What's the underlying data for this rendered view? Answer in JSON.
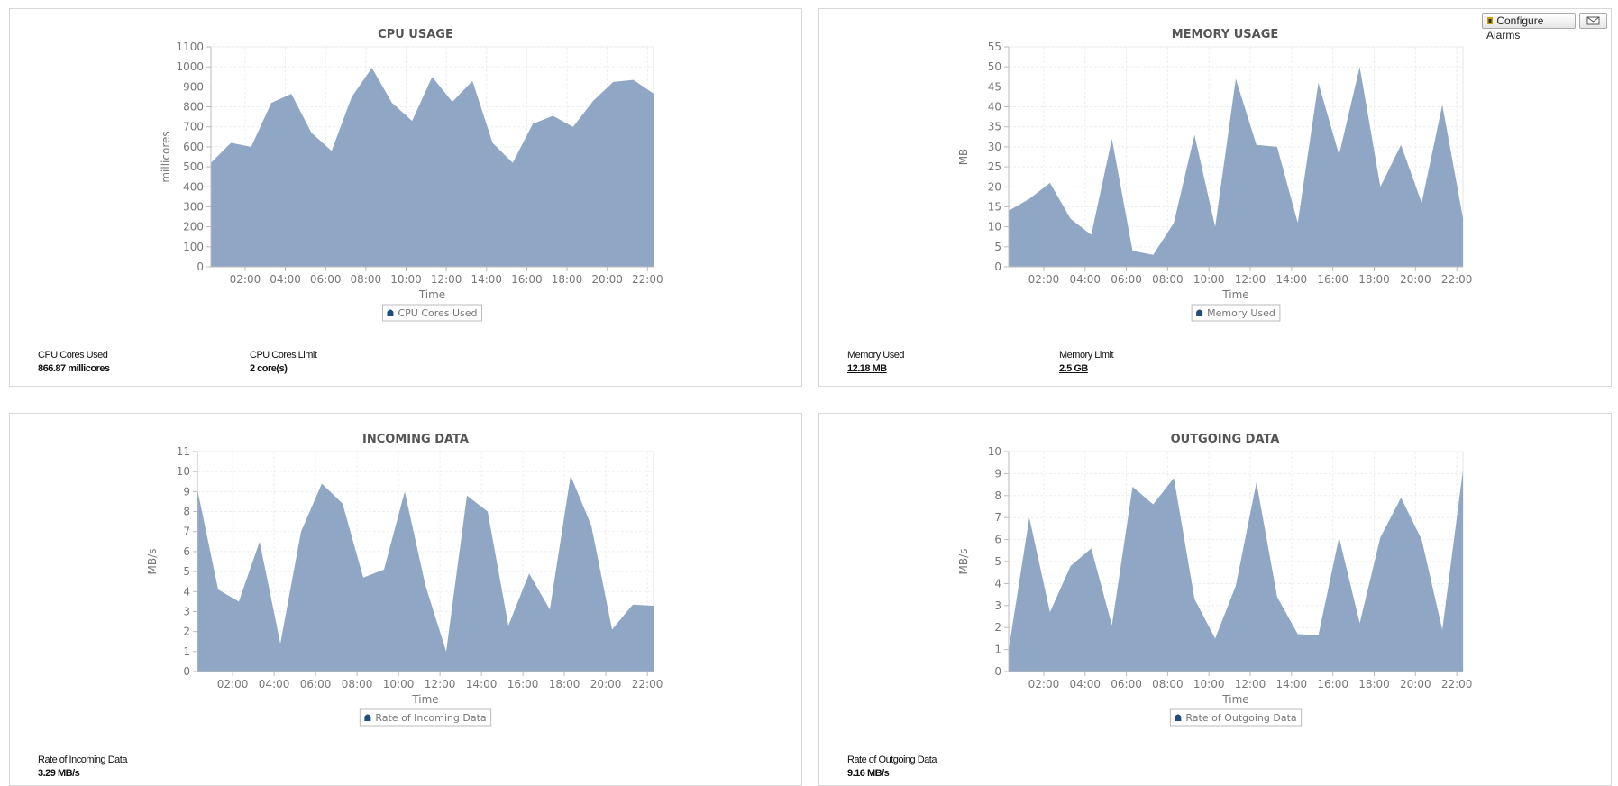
{
  "chart_data": [
    {
      "type": "area",
      "title": "CPU USAGE",
      "x_label": "Time",
      "y_label": "millicores",
      "x": [
        0.3,
        1.3,
        2.3,
        3.3,
        4.3,
        5.3,
        6.3,
        7.3,
        8.3,
        9.3,
        10.3,
        11.3,
        12.3,
        13.3,
        14.3,
        15.3,
        16.3,
        17.3,
        18.3,
        19.3,
        20.3,
        21.3,
        22.3
      ],
      "xlim": [
        0.3,
        22.3
      ],
      "xticks": [
        {
          "value": 2,
          "label": "02:00"
        },
        {
          "value": 4,
          "label": "04:00"
        },
        {
          "value": 6,
          "label": "06:00"
        },
        {
          "value": 8,
          "label": "08:00"
        },
        {
          "value": 10,
          "label": "10:00"
        },
        {
          "value": 12,
          "label": "12:00"
        },
        {
          "value": 14,
          "label": "14:00"
        },
        {
          "value": 16,
          "label": "16:00"
        },
        {
          "value": 18,
          "label": "18:00"
        },
        {
          "value": 20,
          "label": "20:00"
        },
        {
          "value": 22,
          "label": "22:00"
        }
      ],
      "ylim": [
        0,
        1100
      ],
      "yticks": [
        0,
        100,
        200,
        300,
        400,
        500,
        600,
        700,
        800,
        900,
        1000,
        1100
      ],
      "grid": true,
      "series": [
        {
          "name": "CPU Cores Used",
          "color": "#8fa7c4",
          "values": [
            520,
            620,
            600,
            820,
            865,
            670,
            580,
            850,
            995,
            820,
            730,
            950,
            825,
            930,
            620,
            520,
            715,
            755,
            700,
            830,
            925,
            935,
            866.87
          ]
        }
      ]
    },
    {
      "type": "area",
      "title": "MEMORY USAGE",
      "x_label": "Time",
      "y_label": "MB",
      "x": [
        0.3,
        1.3,
        2.3,
        3.3,
        4.3,
        5.3,
        6.3,
        7.3,
        8.3,
        9.3,
        10.3,
        11.3,
        12.3,
        13.3,
        14.3,
        15.3,
        16.3,
        17.3,
        18.3,
        19.3,
        20.3,
        21.3,
        22.3
      ],
      "xlim": [
        0.3,
        22.3
      ],
      "xticks": [
        {
          "value": 2,
          "label": "02:00"
        },
        {
          "value": 4,
          "label": "04:00"
        },
        {
          "value": 6,
          "label": "06:00"
        },
        {
          "value": 8,
          "label": "08:00"
        },
        {
          "value": 10,
          "label": "10:00"
        },
        {
          "value": 12,
          "label": "12:00"
        },
        {
          "value": 14,
          "label": "14:00"
        },
        {
          "value": 16,
          "label": "16:00"
        },
        {
          "value": 18,
          "label": "18:00"
        },
        {
          "value": 20,
          "label": "20:00"
        },
        {
          "value": 22,
          "label": "22:00"
        }
      ],
      "ylim": [
        0,
        55
      ],
      "yticks": [
        0,
        5,
        10,
        15,
        20,
        25,
        30,
        35,
        40,
        45,
        50,
        55
      ],
      "grid": true,
      "series": [
        {
          "name": "Memory Used",
          "color": "#8fa7c4",
          "values": [
            14,
            17,
            21,
            12,
            8,
            32,
            4,
            3,
            11,
            33,
            10,
            47,
            30.5,
            30,
            11,
            46,
            28,
            50,
            20,
            30.5,
            16,
            40.5,
            12.18
          ]
        }
      ]
    },
    {
      "type": "area",
      "title": "INCOMING DATA",
      "x_label": "Time",
      "y_label": "MB/s",
      "x": [
        0.3,
        1.3,
        2.3,
        3.3,
        4.3,
        5.3,
        6.3,
        7.3,
        8.3,
        9.3,
        10.3,
        11.3,
        12.3,
        13.3,
        14.3,
        15.3,
        16.3,
        17.3,
        18.3,
        19.3,
        20.3,
        21.3,
        22.3
      ],
      "xlim": [
        0.3,
        22.3
      ],
      "xticks": [
        {
          "value": 2,
          "label": "02:00"
        },
        {
          "value": 4,
          "label": "04:00"
        },
        {
          "value": 6,
          "label": "06:00"
        },
        {
          "value": 8,
          "label": "08:00"
        },
        {
          "value": 10,
          "label": "10:00"
        },
        {
          "value": 12,
          "label": "12:00"
        },
        {
          "value": 14,
          "label": "14:00"
        },
        {
          "value": 16,
          "label": "16:00"
        },
        {
          "value": 18,
          "label": "18:00"
        },
        {
          "value": 20,
          "label": "20:00"
        },
        {
          "value": 22,
          "label": "22:00"
        }
      ],
      "ylim": [
        0,
        11
      ],
      "yticks": [
        0,
        1,
        2,
        3,
        4,
        5,
        6,
        7,
        8,
        9,
        10,
        11
      ],
      "grid": true,
      "series": [
        {
          "name": "Rate of Incoming Data",
          "color": "#8fa7c4",
          "values": [
            9.1,
            4.1,
            3.5,
            6.5,
            1.4,
            7,
            9.4,
            8.4,
            4.7,
            5.1,
            9,
            4.3,
            1,
            8.8,
            8,
            2.3,
            4.9,
            3.1,
            9.8,
            7.3,
            2.1,
            3.35,
            3.29
          ]
        }
      ]
    },
    {
      "type": "area",
      "title": "OUTGOING DATA",
      "x_label": "Time",
      "y_label": "MB/s",
      "x": [
        0.3,
        1.3,
        2.3,
        3.3,
        4.3,
        5.3,
        6.3,
        7.3,
        8.3,
        9.3,
        10.3,
        11.3,
        12.3,
        13.3,
        14.3,
        15.3,
        16.3,
        17.3,
        18.3,
        19.3,
        20.3,
        21.3,
        22.3
      ],
      "xlim": [
        0.3,
        22.3
      ],
      "xticks": [
        {
          "value": 2,
          "label": "02:00"
        },
        {
          "value": 4,
          "label": "04:00"
        },
        {
          "value": 6,
          "label": "06:00"
        },
        {
          "value": 8,
          "label": "08:00"
        },
        {
          "value": 10,
          "label": "10:00"
        },
        {
          "value": 12,
          "label": "12:00"
        },
        {
          "value": 14,
          "label": "14:00"
        },
        {
          "value": 16,
          "label": "16:00"
        },
        {
          "value": 18,
          "label": "18:00"
        },
        {
          "value": 20,
          "label": "20:00"
        },
        {
          "value": 22,
          "label": "22:00"
        }
      ],
      "ylim": [
        0,
        10
      ],
      "yticks": [
        0,
        1,
        2,
        3,
        4,
        5,
        6,
        7,
        8,
        9,
        10
      ],
      "grid": true,
      "series": [
        {
          "name": "Rate of Outgoing Data",
          "color": "#8fa7c4",
          "values": [
            1,
            7,
            2.7,
            4.8,
            5.6,
            2.1,
            8.4,
            7.6,
            8.8,
            3.3,
            1.5,
            3.9,
            8.6,
            3.4,
            1.7,
            1.65,
            6.1,
            2.2,
            6.1,
            7.9,
            6,
            1.9,
            9.16
          ]
        }
      ]
    }
  ],
  "panels": [
    {
      "stats": [
        {
          "label": "CPU Cores Used",
          "value": "866.87 millicores"
        },
        {
          "label": "CPU Cores Limit",
          "value": "2 core(s)"
        }
      ]
    },
    {
      "stats": [
        {
          "label": "Memory Used",
          "value": "12.18 MB",
          "link": true
        },
        {
          "label": "Memory Limit",
          "value": "2.5 GB",
          "link": true
        }
      ]
    },
    {
      "stats": [
        {
          "label": "Rate of Incoming Data",
          "value": "3.29 MB/s"
        }
      ]
    },
    {
      "stats": [
        {
          "label": "Rate of Outgoing Data",
          "value": "9.16 MB/s"
        }
      ]
    }
  ],
  "toolbar": {
    "configure_alarms": "Configure Alarms"
  }
}
